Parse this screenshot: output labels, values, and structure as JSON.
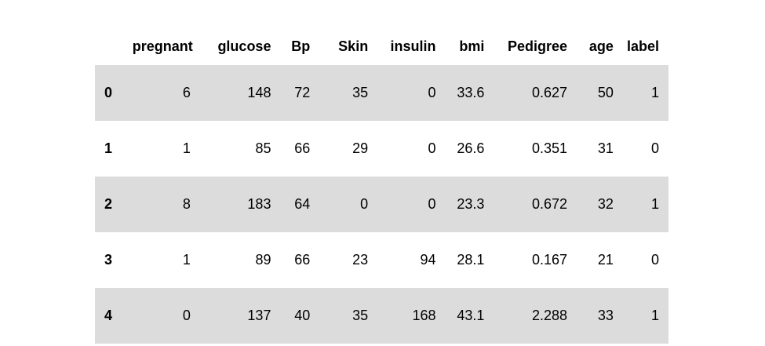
{
  "table": {
    "columns": [
      "pregnant",
      "glucose",
      "Bp",
      "Skin",
      "insulin",
      "bmi",
      "Pedigree",
      "age",
      "label"
    ],
    "index": [
      "0",
      "1",
      "2",
      "3",
      "4"
    ],
    "rows": [
      [
        "6",
        "148",
        "72",
        "35",
        "0",
        "33.6",
        "0.627",
        "50",
        "1"
      ],
      [
        "1",
        "85",
        "66",
        "29",
        "0",
        "26.6",
        "0.351",
        "31",
        "0"
      ],
      [
        "8",
        "183",
        "64",
        "0",
        "0",
        "23.3",
        "0.672",
        "32",
        "1"
      ],
      [
        "1",
        "89",
        "66",
        "23",
        "94",
        "28.1",
        "0.167",
        "21",
        "0"
      ],
      [
        "0",
        "137",
        "40",
        "35",
        "168",
        "43.1",
        "2.288",
        "33",
        "1"
      ]
    ]
  },
  "colors": {
    "stripe": "#dcdcdc",
    "background": "#ffffff",
    "text": "#000000"
  }
}
